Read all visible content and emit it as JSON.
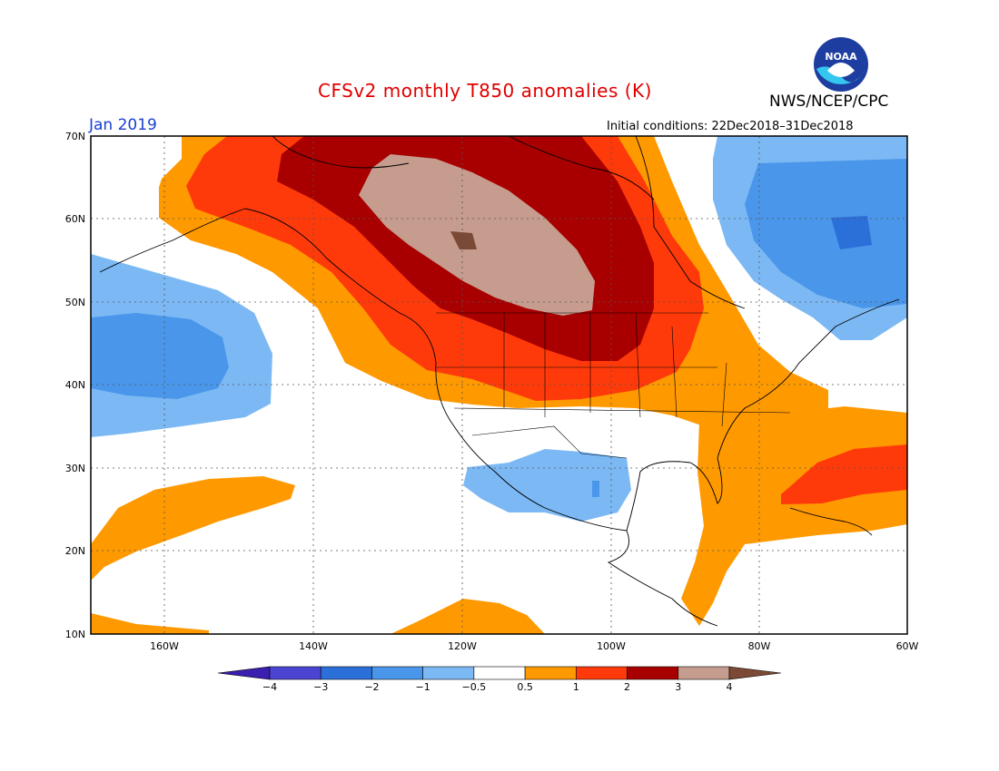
{
  "header": {
    "title": "CFSv2 monthly T850 anomalies (K)",
    "month": "Jan 2019",
    "initial_conditions": "Initial conditions: 22Dec2018–31Dec2018",
    "agency": "NWS/NCEP/CPC",
    "logo_text": "NOAA"
  },
  "map": {
    "lon_labels": [
      "160W",
      "140W",
      "120W",
      "100W",
      "80W",
      "60W"
    ],
    "lat_labels": [
      "70N",
      "60N",
      "50N",
      "40N",
      "30N",
      "20N",
      "10N"
    ]
  },
  "colorbar": {
    "labels": [
      "−4",
      "−3",
      "−2",
      "−1",
      "−0.5",
      "0.5",
      "1",
      "2",
      "3",
      "4"
    ],
    "colors": [
      "#3b1fb0",
      "#4a44d0",
      "#2b6fd9",
      "#4a96ea",
      "#7cb9f4",
      "#ffffff",
      "#ff9900",
      "#ff3a0a",
      "#a80000",
      "#c69c8e",
      "#7a4a36"
    ]
  },
  "colors": {
    "title": "#e00000",
    "month": "#1a3fd0"
  }
}
